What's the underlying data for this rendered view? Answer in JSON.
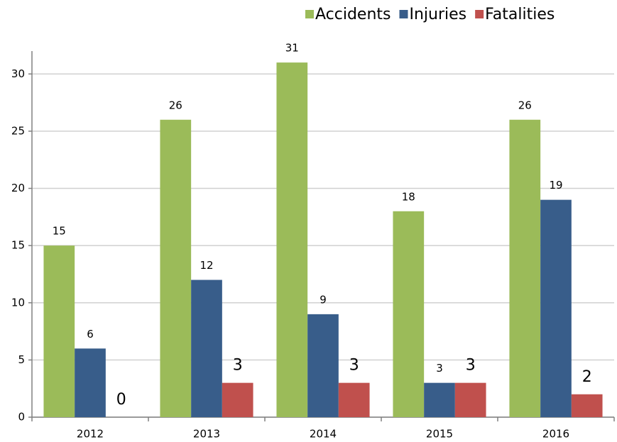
{
  "chart_data": {
    "type": "bar",
    "categories": [
      "2012",
      "2013",
      "2014",
      "2015",
      "2016"
    ],
    "series": [
      {
        "name": "Accidents",
        "color": "#9bbb59",
        "values": [
          15,
          26,
          31,
          18,
          26
        ]
      },
      {
        "name": "Injuries",
        "color": "#385d8a",
        "values": [
          6,
          12,
          9,
          3,
          19
        ]
      },
      {
        "name": "Fatalities",
        "color": "#c0504d",
        "values": [
          0,
          3,
          3,
          3,
          2
        ]
      }
    ],
    "ylim": [
      0,
      32
    ],
    "yticks": [
      0,
      5,
      10,
      15,
      20,
      25,
      30
    ],
    "grid": true,
    "legend": "top-right"
  }
}
